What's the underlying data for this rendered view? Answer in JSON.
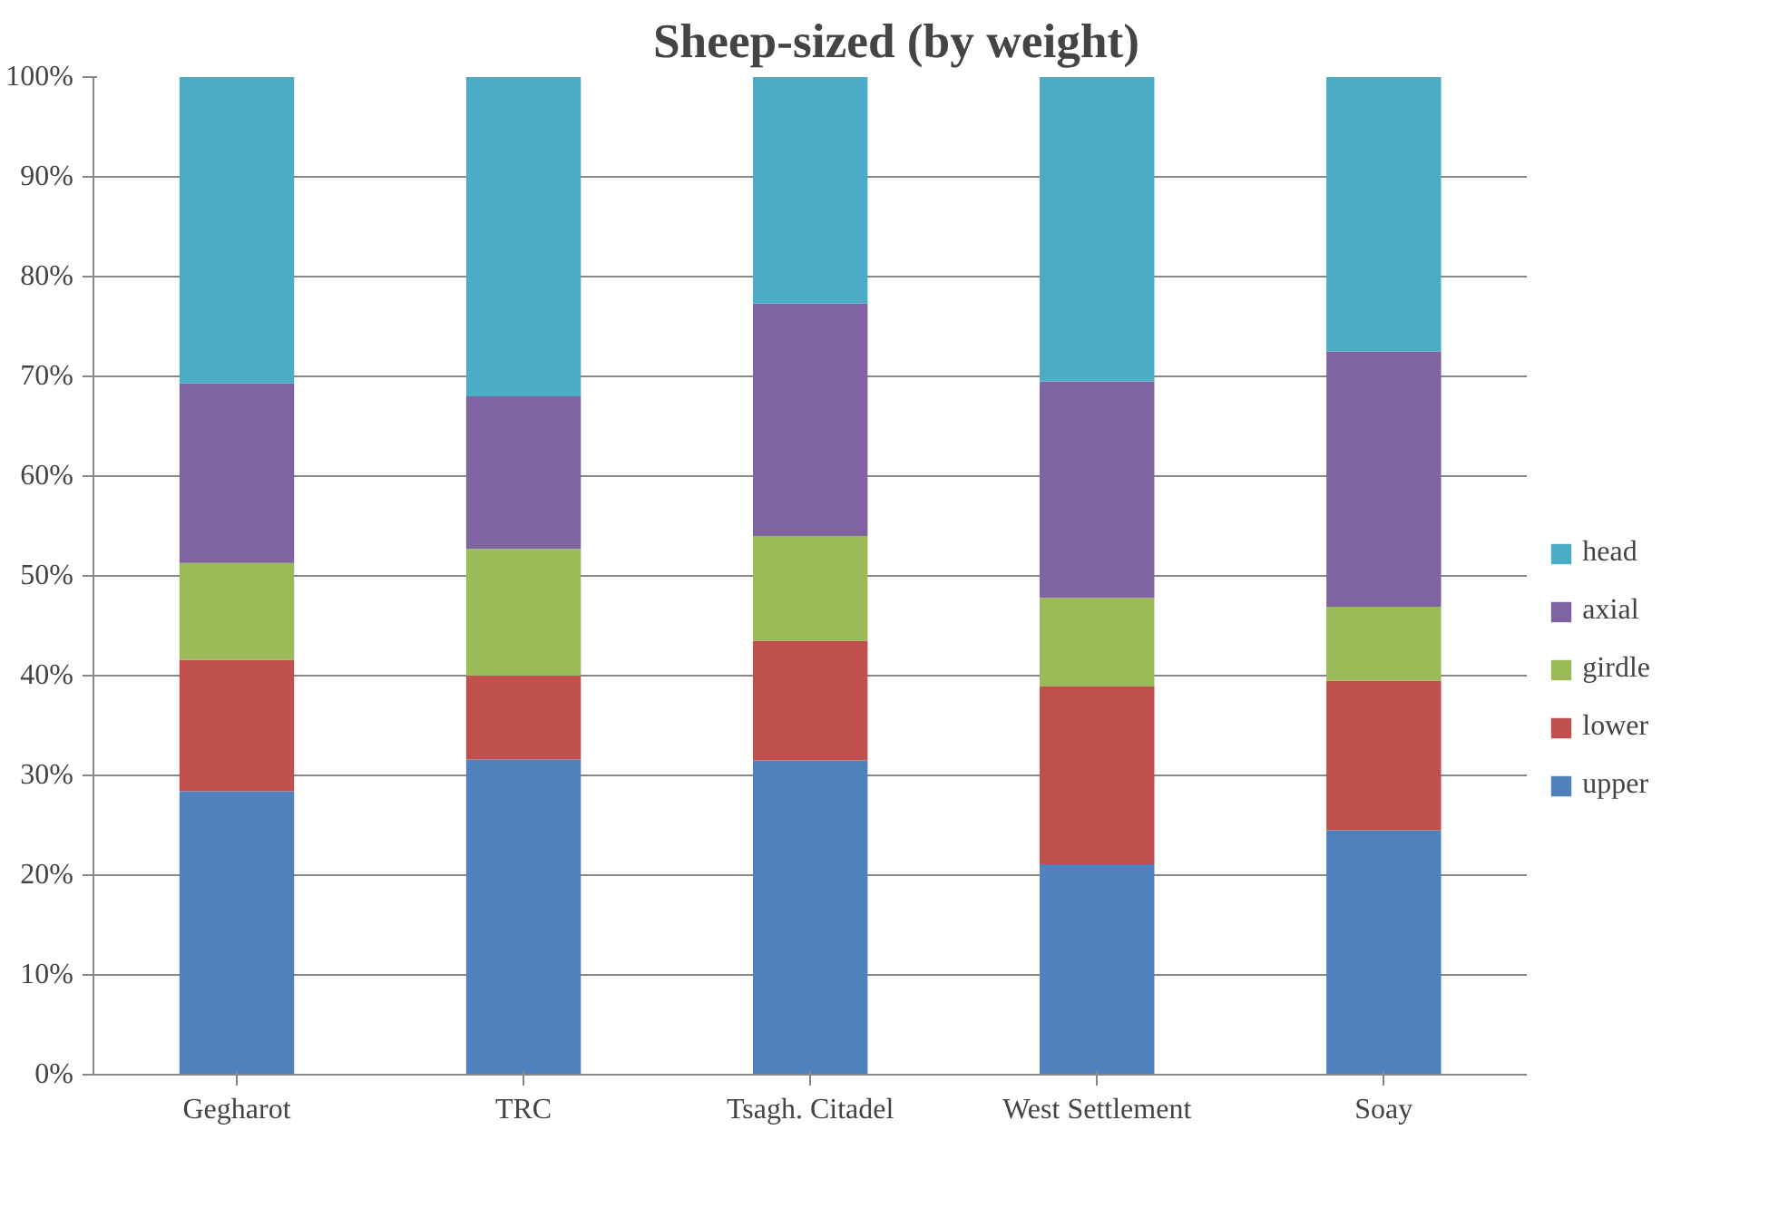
{
  "chart_data": {
    "type": "bar",
    "title": "Sheep-sized (by weight)",
    "stacked": true,
    "categories": [
      "Gegharot",
      "TRC",
      "Tsagh. Citadel",
      "West Settlement",
      "Soay"
    ],
    "series": [
      {
        "name": "upper",
        "color": "#4f81bd",
        "values": [
          28.4,
          31.6,
          31.5,
          21.1,
          24.5
        ]
      },
      {
        "name": "lower",
        "color": "#c0504d",
        "values": [
          13.2,
          8.4,
          12.0,
          17.8,
          15.0
        ]
      },
      {
        "name": "girdle",
        "color": "#9bbb59",
        "values": [
          9.7,
          12.7,
          10.5,
          8.9,
          7.4
        ]
      },
      {
        "name": "axial",
        "color": "#8064a2",
        "values": [
          18.0,
          15.3,
          23.3,
          21.7,
          25.6
        ]
      },
      {
        "name": "head",
        "color": "#4bacc6",
        "values": [
          30.7,
          32.0,
          22.7,
          30.5,
          27.5
        ]
      }
    ],
    "ylim": [
      0,
      100
    ],
    "yticks": [
      {
        "value": 0,
        "label": "0%"
      },
      {
        "value": 10,
        "label": "10%"
      },
      {
        "value": 20,
        "label": "20%"
      },
      {
        "value": 30,
        "label": "30%"
      },
      {
        "value": 40,
        "label": "40%"
      },
      {
        "value": 50,
        "label": "50%"
      },
      {
        "value": 60,
        "label": "60%"
      },
      {
        "value": 70,
        "label": "70%"
      },
      {
        "value": 80,
        "label": "80%"
      },
      {
        "value": 90,
        "label": "90%"
      },
      {
        "value": 100,
        "label": "100%"
      }
    ],
    "grid": "y",
    "legend": "right"
  }
}
